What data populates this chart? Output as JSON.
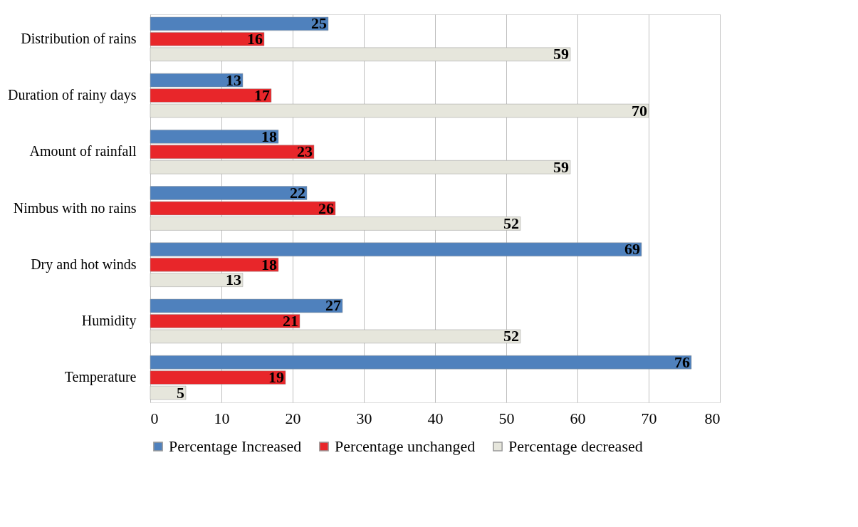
{
  "chart_data": {
    "type": "bar",
    "orientation": "horizontal",
    "categories": [
      "Distribution of rains",
      "Duration of rainy days",
      "Amount of rainfall",
      "Nimbus with no rains",
      "Dry and hot winds",
      "Humidity",
      "Temperature"
    ],
    "series": [
      {
        "name": "Percentage Increased",
        "color": "#4f81bd",
        "values": [
          25,
          13,
          18,
          22,
          69,
          27,
          76
        ]
      },
      {
        "name": "Percentage unchanged",
        "color": "#e8262a",
        "values": [
          16,
          17,
          23,
          26,
          18,
          21,
          19
        ]
      },
      {
        "name": "Percentage decreased",
        "color": "#e6e6dc",
        "values": [
          59,
          70,
          59,
          52,
          13,
          52,
          5
        ]
      }
    ],
    "xlim": [
      0,
      80
    ],
    "xticks": [
      0,
      10,
      20,
      30,
      40,
      50,
      60,
      70,
      80
    ],
    "grid": "x",
    "legend": "bottom",
    "data_labels": true
  }
}
